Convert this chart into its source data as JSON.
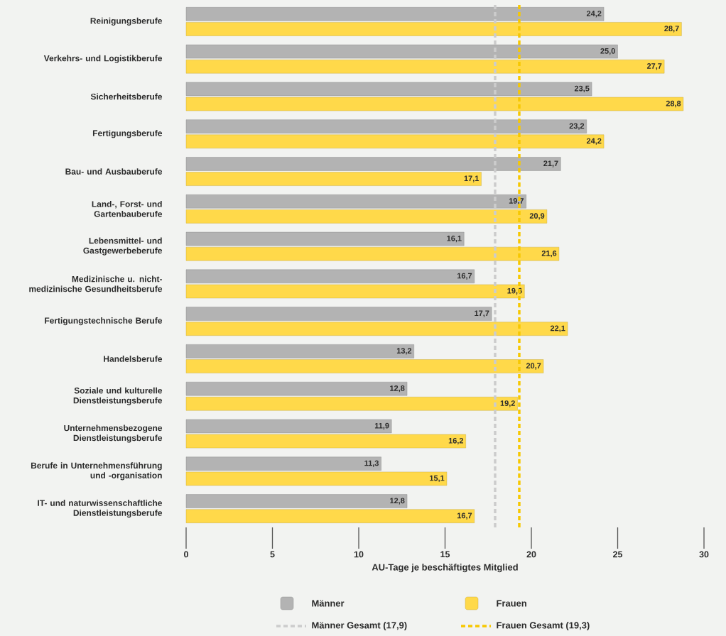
{
  "chart_data": {
    "type": "bar",
    "orientation": "horizontal",
    "categories": [
      "Reinigungsberufe",
      "Verkehrs- und Logistikberufe",
      "Sicherheitsberufe",
      "Fertigungsberufe",
      "Bau- und Ausbauberufe",
      "Land-, Forst- und Gartenbauberufe",
      "Lebensmittel- und Gastgewerbeberufe",
      "Medizinische u. nicht-medizinische Gesundheitsberufe",
      "Fertigungstechnische Berufe",
      "Handelsberufe",
      "Soziale und kulturelle Dienstleistungsberufe",
      "Unternehmensbezogene Dienstleistungsberufe",
      "Berufe in Unternehmensführung und -organisation",
      "IT- und naturwissenschaftliche Dienstleistungsberufe"
    ],
    "series": [
      {
        "name": "Männer",
        "color": "#b3b3b3",
        "values": [
          24.2,
          25.0,
          23.5,
          23.2,
          21.7,
          19.7,
          16.1,
          16.7,
          17.7,
          13.2,
          12.8,
          11.9,
          11.3,
          12.8
        ],
        "value_labels": [
          "24,2",
          "25,0",
          "23,5",
          "23,2",
          "21,7",
          "19,7",
          "16,1",
          "16,7",
          "17,7",
          "13,2",
          "12,8",
          "11,9",
          "11,3",
          "12,8"
        ]
      },
      {
        "name": "Frauen",
        "color": "#ffd94a",
        "values": [
          28.7,
          27.7,
          28.8,
          24.2,
          17.1,
          20.9,
          21.6,
          19.6,
          22.1,
          20.7,
          19.2,
          16.2,
          15.1,
          16.7
        ],
        "value_labels": [
          "28,7",
          "27,7",
          "28,8",
          "24,2",
          "17,1",
          "20,9",
          "21,6",
          "19,6",
          "22,1",
          "20,7",
          "19,2",
          "16,2",
          "15,1",
          "16,7"
        ]
      }
    ],
    "ref_lines": [
      {
        "axis": "x",
        "value": 17.9,
        "label": "Männer Gesamt (17,9)",
        "color": "#cccccc",
        "line_style": "dashed"
      },
      {
        "axis": "x",
        "value": 19.3,
        "label": "Frauen Gesamt (19,3)",
        "color": "#f7c800",
        "line_style": "dashed"
      }
    ],
    "xlabel": "AU-Tage je beschäftigtes Mitglied",
    "xlim": [
      0,
      30
    ],
    "xticks": [
      0,
      5,
      10,
      15,
      20,
      25,
      30
    ],
    "legend": "bottom"
  }
}
